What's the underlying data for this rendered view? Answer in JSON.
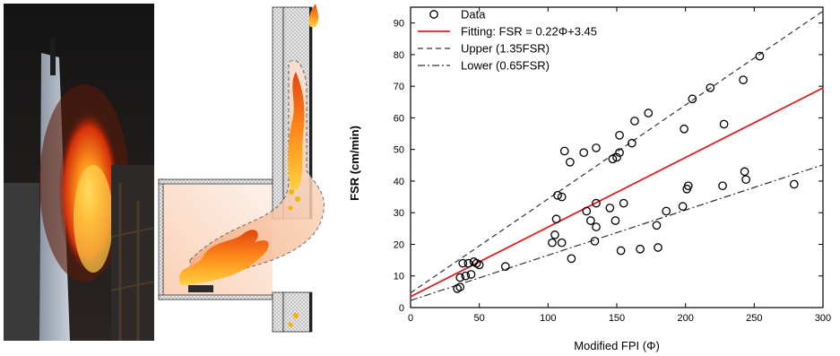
{
  "figure": {
    "photo_description_icon": "fire-facade-photo",
    "schematic_icon": "fire-spread-schematic"
  },
  "chart_data": {
    "type": "scatter",
    "xlabel": "Modified FPI (Φ)",
    "ylabel": "FSR (cm/min)",
    "xlim": [
      0,
      300
    ],
    "ylim": [
      0,
      95
    ],
    "xticks": [
      0,
      50,
      100,
      150,
      200,
      250,
      300
    ],
    "yticks": [
      0,
      10,
      20,
      30,
      40,
      50,
      60,
      70,
      80,
      90
    ],
    "grid": false,
    "legend_position": "top-left",
    "series": [
      {
        "name": "Data",
        "kind": "scatter",
        "marker": "open-circle",
        "color": "#000000",
        "points": [
          [
            34,
            6
          ],
          [
            36,
            6.5
          ],
          [
            36,
            9.5
          ],
          [
            38,
            14
          ],
          [
            40,
            10
          ],
          [
            42,
            14
          ],
          [
            44,
            10.5
          ],
          [
            46,
            14.5
          ],
          [
            48,
            14
          ],
          [
            50,
            13.5
          ],
          [
            69,
            13
          ],
          [
            103,
            20.5
          ],
          [
            105,
            23
          ],
          [
            106,
            28
          ],
          [
            107,
            35.5
          ],
          [
            110,
            35
          ],
          [
            110,
            20.5
          ],
          [
            112,
            49.5
          ],
          [
            116,
            46
          ],
          [
            117,
            15.5
          ],
          [
            126,
            49
          ],
          [
            128,
            30.5
          ],
          [
            131,
            27.5
          ],
          [
            135,
            50.5
          ],
          [
            135,
            33
          ],
          [
            135,
            25.5
          ],
          [
            134,
            21
          ],
          [
            145,
            31.5
          ],
          [
            147,
            47
          ],
          [
            149,
            27.5
          ],
          [
            150,
            47.5
          ],
          [
            152,
            54.5
          ],
          [
            152,
            49
          ],
          [
            153,
            18
          ],
          [
            155,
            33
          ],
          [
            161,
            52
          ],
          [
            163,
            59
          ],
          [
            167,
            18.5
          ],
          [
            173,
            61.5
          ],
          [
            179,
            26
          ],
          [
            180,
            19
          ],
          [
            186,
            30.5
          ],
          [
            198,
            32
          ],
          [
            199,
            56.5
          ],
          [
            202,
            38.5
          ],
          [
            201,
            37.5
          ],
          [
            205,
            66
          ],
          [
            218,
            69.5
          ],
          [
            227,
            38.5
          ],
          [
            228,
            58
          ],
          [
            242,
            72
          ],
          [
            243,
            43
          ],
          [
            244,
            40.5
          ],
          [
            254,
            79.5
          ],
          [
            279,
            39
          ]
        ]
      },
      {
        "name": "Fitting: FSR = 0.22Φ+3.45",
        "kind": "line",
        "slope": 0.22,
        "intercept": 3.45,
        "color": "#e02020",
        "dash": "solid"
      },
      {
        "name": "Upper (1.35FSR)",
        "kind": "line",
        "slope": 0.297,
        "intercept": 4.6575,
        "color": "#333333",
        "dash": "dashed"
      },
      {
        "name": "Lower (0.65FSR)",
        "kind": "line",
        "slope": 0.143,
        "intercept": 2.2425,
        "color": "#333333",
        "dash": "dashdot"
      }
    ]
  }
}
